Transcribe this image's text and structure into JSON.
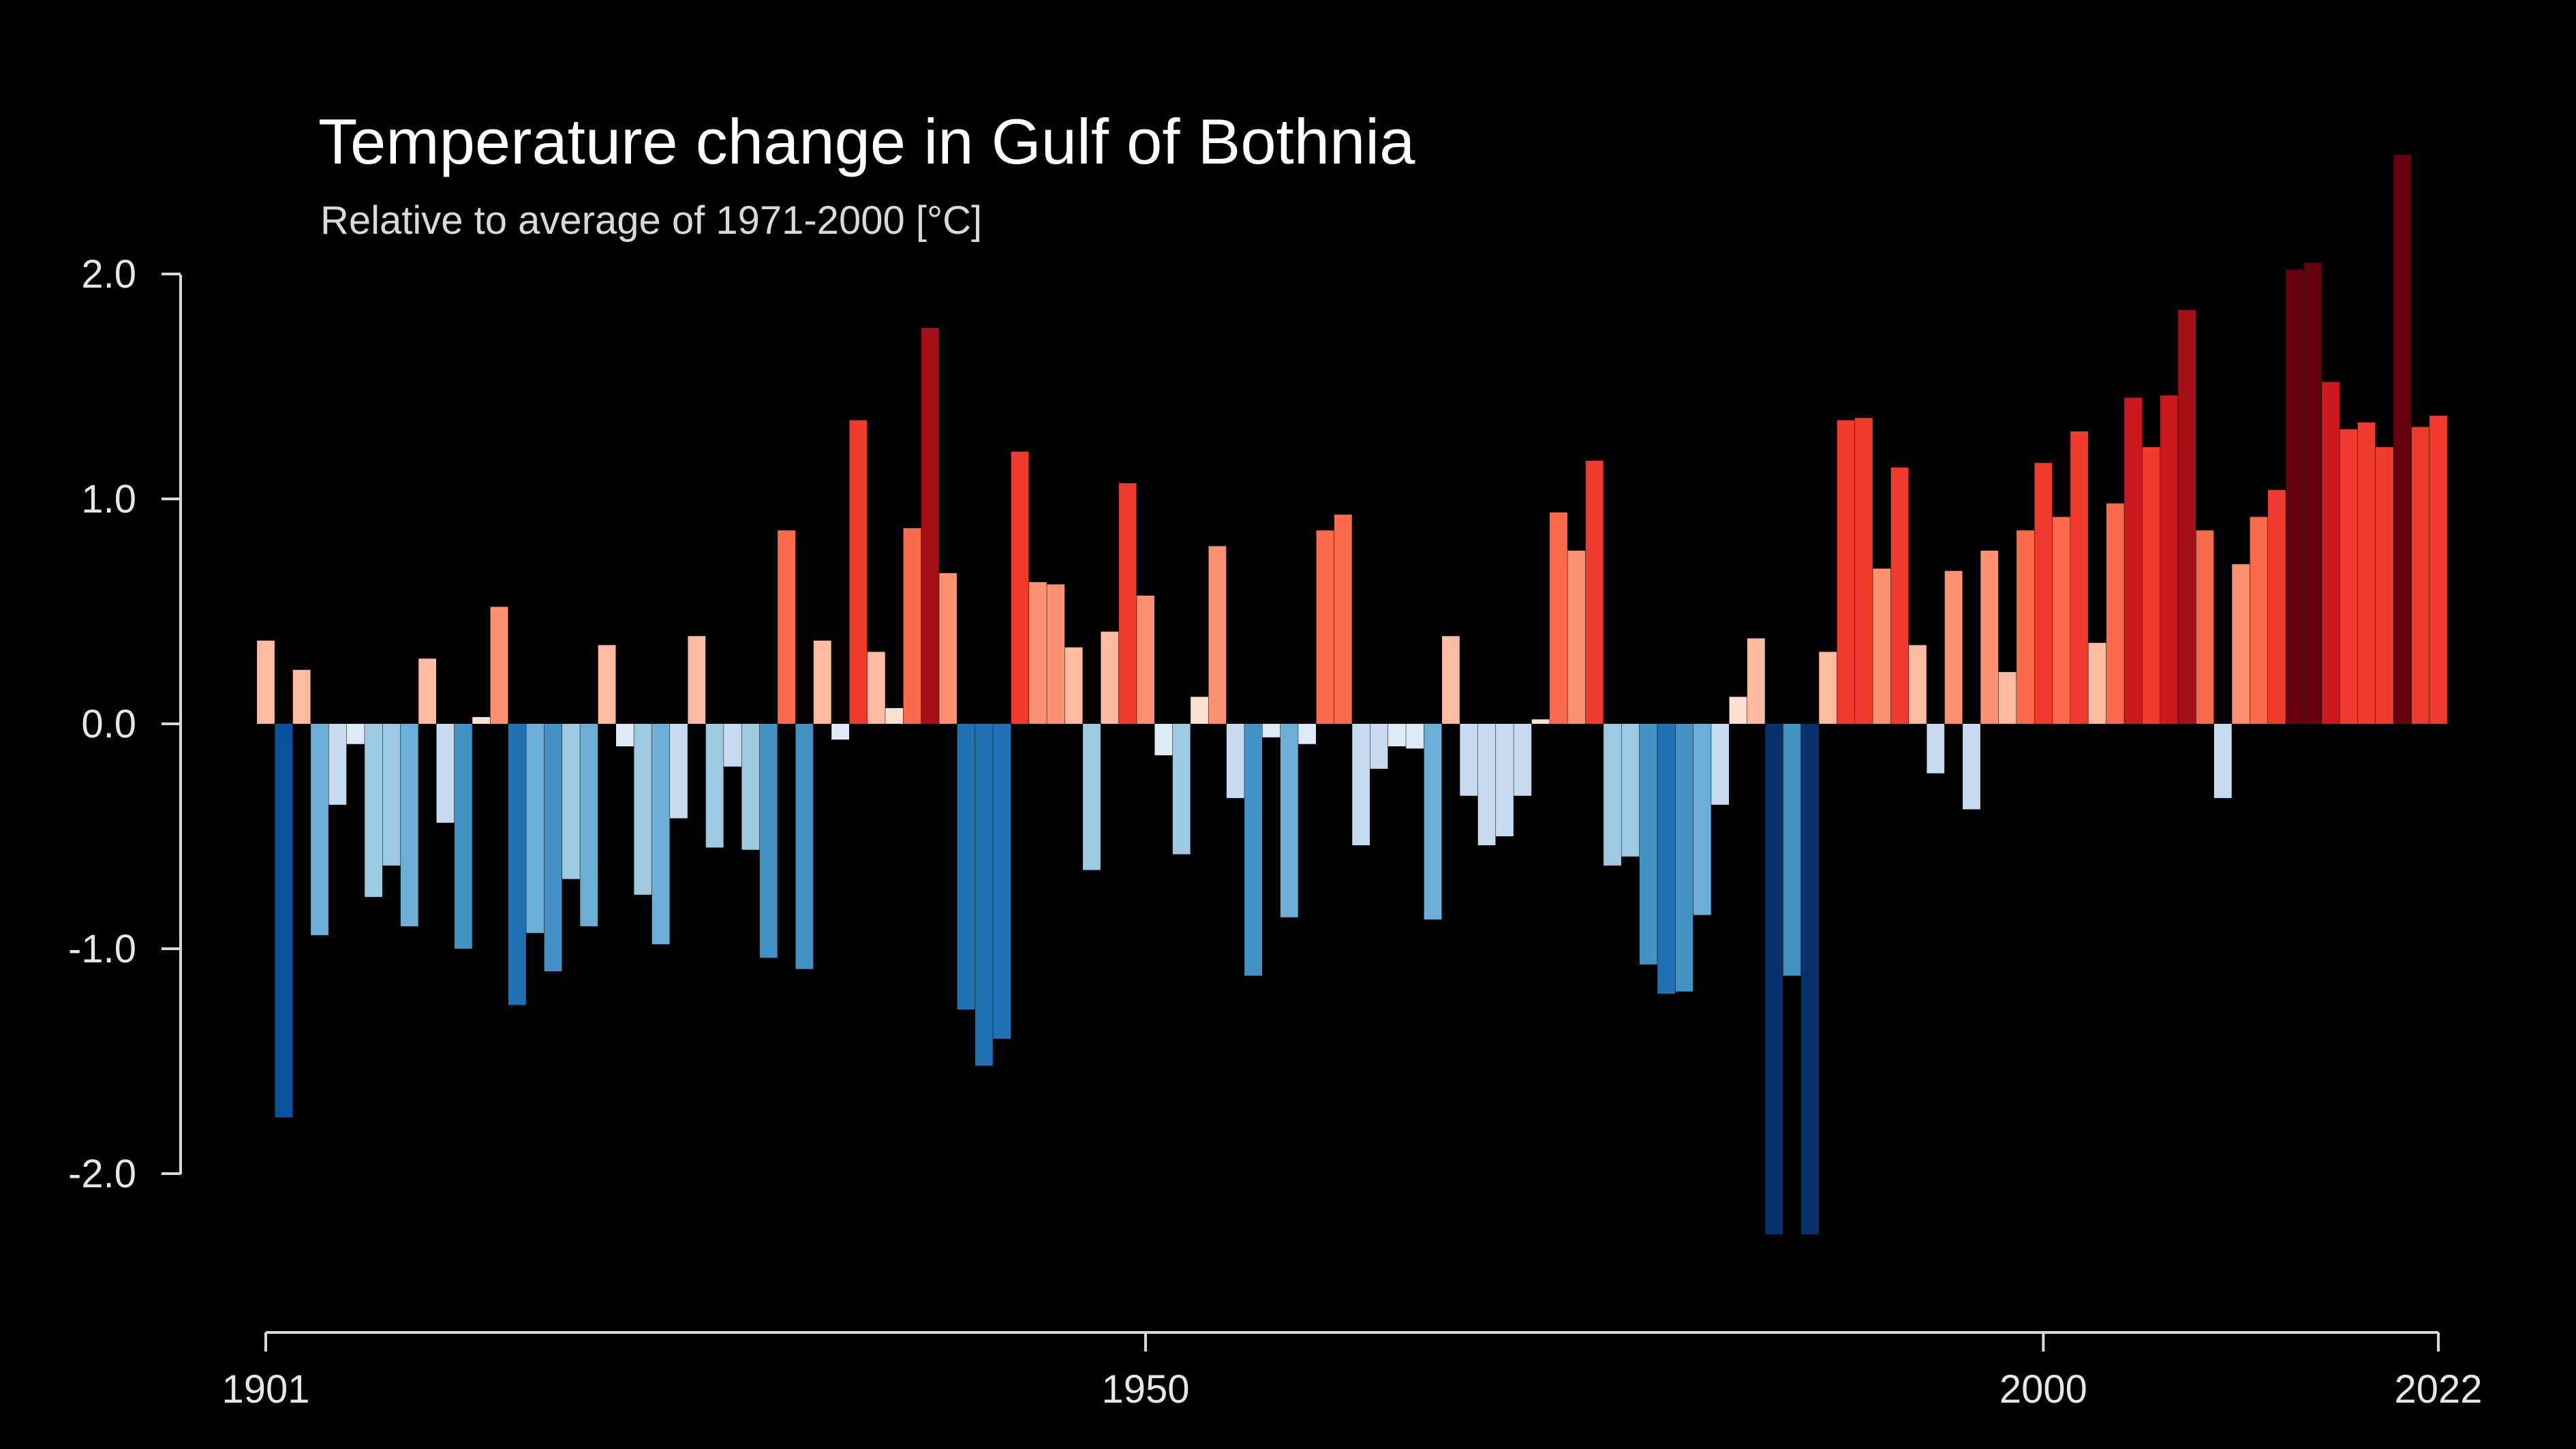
{
  "chart_data": {
    "type": "bar",
    "title": "Temperature change in Gulf of Bothnia",
    "subtitle": "Relative to average of 1971-2000  [°C]",
    "xlabel": "",
    "ylabel": "",
    "x_start": 1901,
    "x_end": 2022,
    "ylim": [
      -2.5,
      2.5
    ],
    "y_ticks": [
      2.0,
      1.0,
      0.0,
      -1.0,
      -2.0
    ],
    "y_tick_labels": [
      "2.0",
      "1.0",
      "0.0",
      "-1.0",
      "-2.0"
    ],
    "x_ticks": [
      1901,
      1950,
      2000,
      2022
    ],
    "x_tick_labels": [
      "1901",
      "1950",
      "2000",
      "2022"
    ],
    "grid": false,
    "colors": {
      "background": "#000000",
      "scale": [
        "#08306b",
        "#08519c",
        "#2171b5",
        "#4292c6",
        "#6baed6",
        "#9ecae1",
        "#c6dbef",
        "#deebf7",
        "#fee0d2",
        "#fcbba1",
        "#fc9272",
        "#fb6a4a",
        "#ef3b2c",
        "#cb181d",
        "#a50f15",
        "#67000d"
      ]
    },
    "categories": [
      1901,
      1902,
      1903,
      1904,
      1905,
      1906,
      1907,
      1908,
      1909,
      1910,
      1911,
      1912,
      1913,
      1914,
      1915,
      1916,
      1917,
      1918,
      1919,
      1920,
      1921,
      1922,
      1923,
      1924,
      1925,
      1926,
      1927,
      1928,
      1929,
      1930,
      1931,
      1932,
      1933,
      1934,
      1935,
      1936,
      1937,
      1938,
      1939,
      1940,
      1941,
      1942,
      1943,
      1944,
      1945,
      1946,
      1947,
      1948,
      1949,
      1950,
      1951,
      1952,
      1953,
      1954,
      1955,
      1956,
      1957,
      1958,
      1959,
      1960,
      1961,
      1962,
      1963,
      1964,
      1965,
      1966,
      1967,
      1968,
      1969,
      1970,
      1971,
      1972,
      1973,
      1974,
      1975,
      1976,
      1977,
      1978,
      1979,
      1980,
      1981,
      1982,
      1983,
      1984,
      1985,
      1986,
      1987,
      1988,
      1989,
      1990,
      1991,
      1992,
      1993,
      1994,
      1995,
      1996,
      1997,
      1998,
      1999,
      2000,
      2001,
      2002,
      2003,
      2004,
      2005,
      2006,
      2007,
      2008,
      2009,
      2010,
      2011,
      2012,
      2013,
      2014,
      2015,
      2016,
      2017,
      2018,
      2019,
      2020,
      2021,
      2022
    ],
    "values": [
      0.37,
      -1.75,
      0.24,
      -0.94,
      -0.36,
      -0.09,
      -0.77,
      -0.63,
      -0.9,
      0.29,
      -0.44,
      -1.0,
      0.03,
      0.52,
      -1.25,
      -0.93,
      -1.1,
      -0.69,
      -0.9,
      0.35,
      -0.1,
      -0.76,
      -0.98,
      -0.42,
      0.39,
      -0.55,
      -0.19,
      -0.56,
      -1.04,
      0.86,
      -1.09,
      0.37,
      -0.07,
      1.35,
      0.32,
      0.07,
      0.87,
      1.76,
      0.67,
      -1.27,
      -1.52,
      -1.4,
      1.21,
      0.63,
      0.62,
      0.34,
      -0.65,
      0.41,
      1.07,
      0.57,
      -0.14,
      -0.58,
      0.12,
      0.79,
      -0.33,
      -1.12,
      -0.06,
      -0.86,
      -0.09,
      0.86,
      0.93,
      -0.54,
      -0.2,
      -0.1,
      -0.11,
      -0.87,
      0.39,
      -0.32,
      -0.54,
      -0.5,
      -0.32,
      0.02,
      0.94,
      0.77,
      1.17,
      -0.63,
      -0.59,
      -1.07,
      -1.2,
      -1.19,
      -0.85,
      -0.36,
      0.12,
      0.38,
      -2.27,
      -1.12,
      -2.27,
      0.32,
      1.35,
      1.36,
      0.69,
      1.14,
      0.35,
      -0.22,
      0.68,
      -0.38,
      0.77,
      0.23,
      0.86,
      1.16,
      0.92,
      1.3,
      0.36,
      0.98,
      1.45,
      1.23,
      1.46,
      1.84,
      0.86,
      -0.33,
      0.71,
      0.92,
      1.04,
      2.02,
      2.05,
      1.52,
      1.31,
      1.34,
      1.23,
      2.53,
      1.32,
      1.37
    ]
  }
}
